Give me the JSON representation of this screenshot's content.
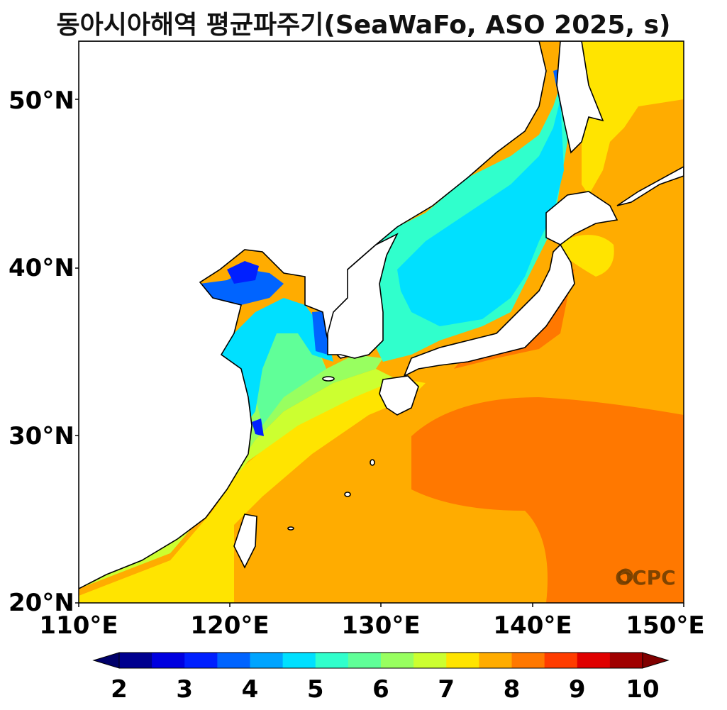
{
  "title": "동아시아해역 평균파주기(SeaWaFo, ASO 2025, s)",
  "map": {
    "lon_range": [
      110,
      150
    ],
    "lat_range": [
      20,
      53.5
    ],
    "y_ticks": [
      "50°N",
      "40°N",
      "30°N",
      "20°N"
    ],
    "x_ticks": [
      "110°E",
      "120°E",
      "130°E",
      "140°E",
      "150°E"
    ],
    "watermark": "OCPC",
    "variable": "mean wave period",
    "unit": "s"
  },
  "colorbar": {
    "ticks": [
      "2",
      "3",
      "4",
      "5",
      "6",
      "7",
      "8",
      "9",
      "10"
    ],
    "colors": [
      "#00008f",
      "#0000e0",
      "#0020ff",
      "#0064ff",
      "#00a4ff",
      "#00e0ff",
      "#30ffcc",
      "#60ff98",
      "#98ff60",
      "#ccff30",
      "#ffe400",
      "#ffac00",
      "#ff7800",
      "#ff3c00",
      "#e00000",
      "#a00000"
    ],
    "under_color": "#00006a",
    "over_color": "#800000"
  }
}
